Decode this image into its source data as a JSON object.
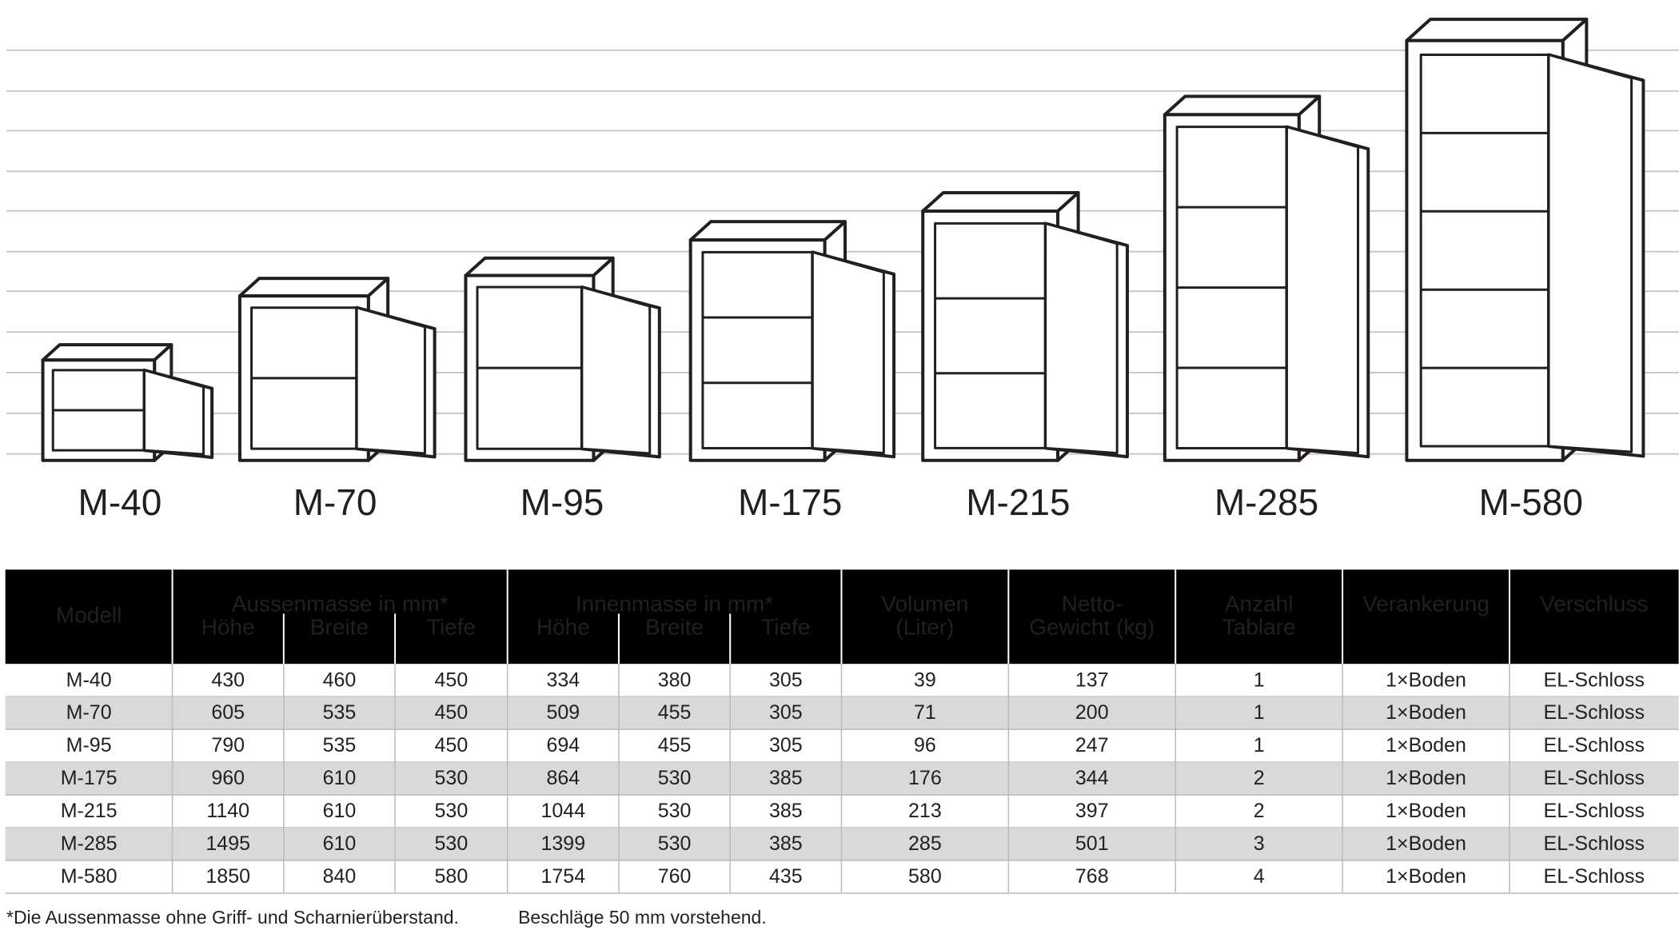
{
  "illustration": {
    "labels": [
      "M-40",
      "M-70",
      "M-95",
      "M-175",
      "M-215",
      "M-285",
      "M-580"
    ]
  },
  "table": {
    "header": {
      "model": "Modell",
      "groups": [
        {
          "title": "Aussenmasse in mm*",
          "columns": [
            "Höhe",
            "Breite",
            "Tiefe"
          ]
        },
        {
          "title": "Innenmasse in mm*",
          "columns": [
            "Höhe",
            "Breite",
            "Tiefe"
          ]
        }
      ],
      "others": [
        [
          "Volumen",
          "(Liter)"
        ],
        [
          "Netto-",
          "Gewicht (kg)"
        ],
        [
          "Anzahl",
          "Tablare"
        ],
        [
          "Verankerung"
        ],
        [
          "Verschluss"
        ]
      ]
    },
    "rows": [
      [
        "M-40",
        430,
        460,
        450,
        334,
        380,
        305,
        39,
        137,
        1,
        "1×Boden",
        "EL-Schloss"
      ],
      [
        "M-70",
        605,
        535,
        450,
        509,
        455,
        305,
        71,
        200,
        1,
        "1×Boden",
        "EL-Schloss"
      ],
      [
        "M-95",
        790,
        535,
        450,
        694,
        455,
        305,
        96,
        247,
        1,
        "1×Boden",
        "EL-Schloss"
      ],
      [
        "M-175",
        960,
        610,
        530,
        864,
        530,
        385,
        176,
        344,
        2,
        "1×Boden",
        "EL-Schloss"
      ],
      [
        "M-215",
        1140,
        610,
        530,
        1044,
        530,
        385,
        213,
        397,
        2,
        "1×Boden",
        "EL-Schloss"
      ],
      [
        "M-285",
        1495,
        610,
        530,
        1399,
        530,
        385,
        285,
        501,
        3,
        "1×Boden",
        "EL-Schloss"
      ],
      [
        "M-580",
        1850,
        840,
        580,
        1754,
        760,
        435,
        580,
        768,
        4,
        "1×Boden",
        "EL-Schloss"
      ]
    ]
  },
  "footnote": [
    "*Die Aussenmasse ohne Griff- und Scharnierüberstand.",
    "Beschläge 50 mm vorstehend."
  ]
}
